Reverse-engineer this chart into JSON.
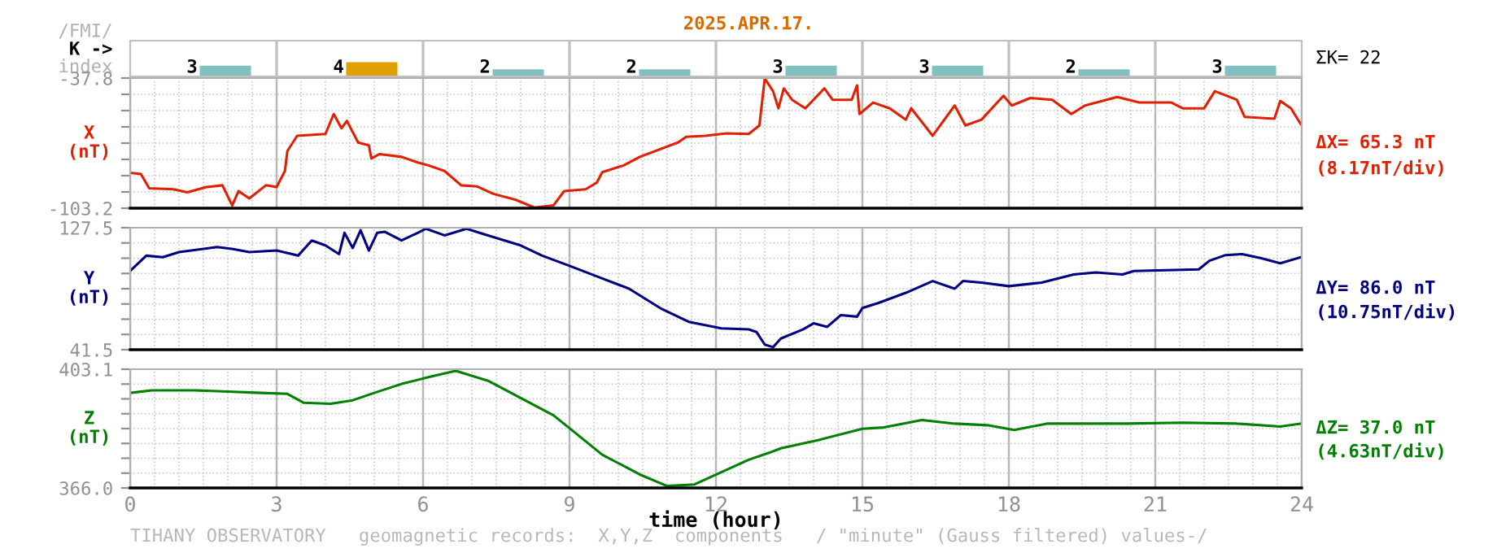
{
  "chart_data": [
    {
      "type": "bar",
      "title": "2025.APR.17.",
      "ylabel": "K ->",
      "annotations": [
        "/FMI/",
        "index",
        "ΣK= 22"
      ],
      "categories": [
        null,
        null,
        null,
        null,
        null,
        null,
        null,
        null
      ],
      "values": [
        3,
        4,
        2,
        2,
        3,
        3,
        2,
        3
      ],
      "colors": [
        "#80c0c0",
        "#e0a000",
        "#80c0c0",
        "#80c0c0",
        "#80c0c0",
        "#80c0c0",
        "#80c0c0",
        "#80c0c0"
      ],
      "data_labels": true,
      "grid": "x",
      "tick_labels": false
    },
    {
      "type": "line",
      "ylabel": "X\n(nT)",
      "annotations": [
        "ΔX= 65.3 nT",
        "(8.17nT/div)"
      ],
      "xlim": [
        0,
        24
      ],
      "xticks": [
        0,
        3,
        6,
        9,
        12,
        15,
        18,
        21,
        24
      ],
      "ylim": [
        -103.2,
        -37.8
      ],
      "yticks": [
        -103.2,
        {
          "value": -95.03,
          "label": null
        },
        {
          "value": -86.85,
          "label": null
        },
        {
          "value": -78.68,
          "label": null
        },
        {
          "value": -70.5,
          "label": null
        },
        {
          "value": -62.33,
          "label": null
        },
        {
          "value": -54.15,
          "label": null
        },
        {
          "value": -45.98,
          "label": null
        },
        -37.8
      ],
      "grid": true,
      "tick_labels": "y",
      "series": [
        {
          "color": "#e02000",
          "x": [
            0,
            0.22,
            0.39,
            0.89,
            1.17,
            1.56,
            1.89,
            2.09,
            2.22,
            2.44,
            2.78,
            3.0,
            3.17,
            3.22,
            3.42,
            4.0,
            4.17,
            4.33,
            4.44,
            4.67,
            4.89,
            4.94,
            5.11,
            5.56,
            5.89,
            6.11,
            6.44,
            6.78,
            7.11,
            7.44,
            7.89,
            8.28,
            8.67,
            8.89,
            9.33,
            9.56,
            9.67,
            10.11,
            10.44,
            11.22,
            11.39,
            11.78,
            12.22,
            12.67,
            12.89,
            13.0,
            13.17,
            13.28,
            13.39,
            13.56,
            13.83,
            14.22,
            14.39,
            14.78,
            14.89,
            14.94,
            15.22,
            15.56,
            15.89,
            16.0,
            16.44,
            16.89,
            17.11,
            17.44,
            17.89,
            18.06,
            18.44,
            18.89,
            19.28,
            19.56,
            20.22,
            20.67,
            21.33,
            21.56,
            22.0,
            22.22,
            22.67,
            22.83,
            23.44,
            23.56,
            23.78,
            23.98
          ],
          "values": [
            -85.4,
            -86.0,
            -93.2,
            -93.7,
            -95.2,
            -92.6,
            -91.7,
            -101.8,
            -94.6,
            -98.3,
            -91.7,
            -92.6,
            -84.5,
            -74.5,
            -66.8,
            -65.9,
            -55.9,
            -63.0,
            -59.3,
            -70.2,
            -71.6,
            -78.2,
            -76.0,
            -77.4,
            -80.2,
            -81.7,
            -84.5,
            -91.7,
            -92.3,
            -96.0,
            -98.9,
            -102.9,
            -101.8,
            -94.6,
            -93.7,
            -90.3,
            -85.1,
            -81.7,
            -77.4,
            -70.2,
            -67.3,
            -66.8,
            -65.6,
            -65.9,
            -61.6,
            -38.0,
            -44.4,
            -53.0,
            -43.0,
            -48.7,
            -53.0,
            -43.0,
            -48.7,
            -48.7,
            -41.5,
            -55.9,
            -50.1,
            -53.0,
            -58.7,
            -53.0,
            -66.8,
            -51.6,
            -61.6,
            -58.7,
            -46.7,
            -51.6,
            -47.8,
            -48.7,
            -55.9,
            -51.6,
            -47.3,
            -50.1,
            -50.1,
            -53.0,
            -53.0,
            -44.4,
            -48.7,
            -57.3,
            -58.2,
            -49.3,
            -53.0,
            -61.0
          ]
        }
      ]
    },
    {
      "type": "line",
      "ylabel": "Y\n(nT)",
      "annotations": [
        "ΔY= 86.0 nT",
        "(10.75nT/div)"
      ],
      "xlim": [
        0,
        24
      ],
      "xticks": [
        0,
        3,
        6,
        9,
        12,
        15,
        18,
        21,
        24
      ],
      "ylim": [
        41.5,
        127.5
      ],
      "yticks": [
        41.5,
        {
          "value": 52.25,
          "label": null
        },
        {
          "value": 63.0,
          "label": null
        },
        {
          "value": 73.75,
          "label": null
        },
        {
          "value": 84.5,
          "label": null
        },
        {
          "value": 95.25,
          "label": null
        },
        {
          "value": 106.0,
          "label": null
        },
        {
          "value": 116.75,
          "label": null
        },
        127.5
      ],
      "grid": true,
      "tick_labels": "y",
      "series": [
        {
          "color": "#000080",
          "x": [
            0,
            0.33,
            0.67,
            1.0,
            1.78,
            2.11,
            2.44,
            3.0,
            3.44,
            3.72,
            4.0,
            4.28,
            4.39,
            4.56,
            4.72,
            4.89,
            5.06,
            5.22,
            5.56,
            5.89,
            6.06,
            6.44,
            6.89,
            7.33,
            8.0,
            8.44,
            9.0,
            9.67,
            10.22,
            10.89,
            11.44,
            12.11,
            12.67,
            12.83,
            13.0,
            13.17,
            13.33,
            13.78,
            14.0,
            14.28,
            14.56,
            14.89,
            15.0,
            15.33,
            15.89,
            16.44,
            16.89,
            17.06,
            17.44,
            18.0,
            18.67,
            19.33,
            19.78,
            20.33,
            20.56,
            21.89,
            22.11,
            22.44,
            22.78,
            23.17,
            23.56,
            23.98
          ],
          "values": [
            97.0,
            107.8,
            106.7,
            110.3,
            113.9,
            112.5,
            110.3,
            111.4,
            107.8,
            118.5,
            115.0,
            108.9,
            123.9,
            113.2,
            125.7,
            111.4,
            123.9,
            124.6,
            118.5,
            123.9,
            126.8,
            122.1,
            126.8,
            122.1,
            115.0,
            107.8,
            100.6,
            91.7,
            84.5,
            70.2,
            61.2,
            56.6,
            55.8,
            54.0,
            45.1,
            43.3,
            49.4,
            55.8,
            60.1,
            57.6,
            65.9,
            64.8,
            70.9,
            74.5,
            81.6,
            89.9,
            84.5,
            89.9,
            88.8,
            86.3,
            88.8,
            94.5,
            96.0,
            94.5,
            97.0,
            98.1,
            104.2,
            108.2,
            108.9,
            106.0,
            102.4,
            106.7
          ]
        }
      ]
    },
    {
      "type": "line",
      "ylabel": "Z\n(nT)",
      "xlabel": "time (hour)",
      "annotations": [
        "ΔZ= 37.0 nT",
        "(4.63nT/div)",
        "TIHANY OBSERVATORY   geomagnetic records:  X,Y,Z  components   / \"minute\" (Gauss filtered) values-/"
      ],
      "xlim": [
        0,
        24
      ],
      "xticks": [
        0,
        3,
        6,
        9,
        12,
        15,
        18,
        21,
        24
      ],
      "ylim": [
        366.0,
        403.1
      ],
      "yticks": [
        {
          "value": 366.0,
          "label": "366.0"
        },
        {
          "value": 370.64,
          "label": null
        },
        {
          "value": 375.28,
          "label": null
        },
        {
          "value": 379.91,
          "label": null
        },
        {
          "value": 384.55,
          "label": null
        },
        {
          "value": 389.19,
          "label": null
        },
        {
          "value": 393.83,
          "label": null
        },
        {
          "value": 398.46,
          "label": null
        },
        403.1
      ],
      "grid": true,
      "series": [
        {
          "color": "#008000",
          "x": [
            0,
            0.44,
            1.33,
            2.0,
            2.67,
            3.22,
            3.56,
            4.11,
            4.56,
            5.0,
            5.56,
            6.11,
            6.67,
            7.33,
            8.0,
            8.67,
            9.11,
            9.67,
            10.44,
            11.0,
            11.56,
            12.11,
            12.67,
            13.11,
            13.33,
            14.11,
            15.0,
            15.44,
            16.22,
            16.89,
            17.56,
            18.11,
            18.78,
            20.44,
            21.56,
            22.67,
            23.56,
            23.98
          ],
          "values": [
            395.7,
            396.5,
            396.5,
            396.1,
            395.7,
            395.4,
            392.6,
            392.3,
            393.4,
            395.7,
            398.5,
            400.6,
            402.6,
            399.5,
            394.1,
            388.7,
            383.3,
            376.4,
            370.2,
            366.6,
            367.1,
            370.9,
            374.8,
            377.1,
            378.4,
            381.0,
            384.5,
            384.9,
            387.2,
            386.1,
            385.6,
            384.1,
            386.1,
            386.1,
            386.4,
            386.1,
            385.2,
            386.1
          ]
        }
      ]
    }
  ]
}
